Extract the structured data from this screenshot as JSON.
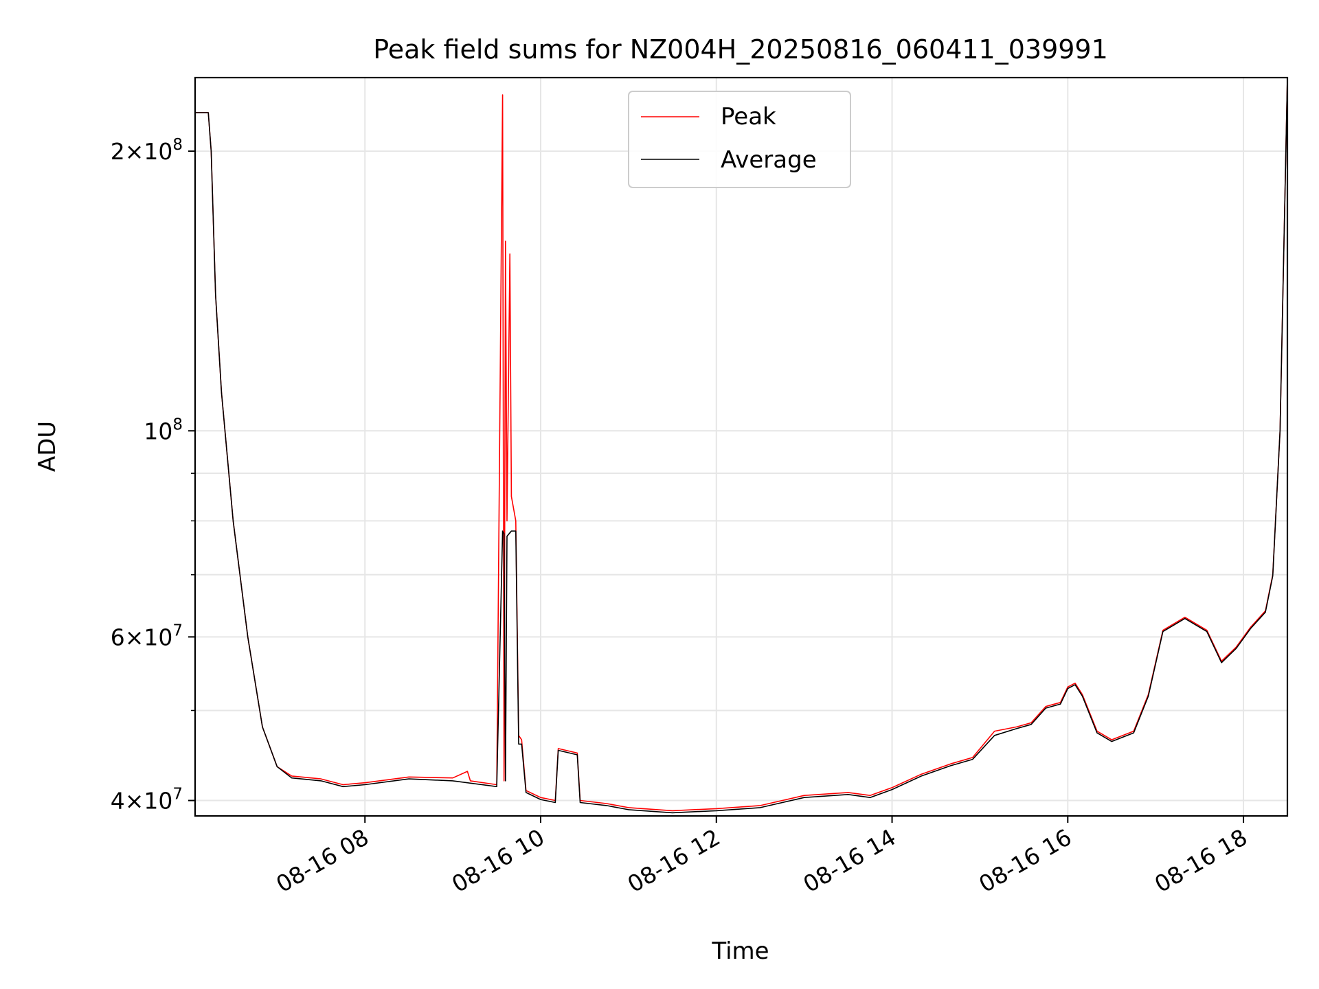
{
  "chart_data": {
    "type": "line",
    "title": "Peak field sums for NZ004H_20250816_060411_039991",
    "xlabel": "Time",
    "ylabel": "ADU",
    "x_scale": "time",
    "y_scale": "log",
    "xlim": [
      "2025-08-16 06:04",
      "2025-08-16 18:30"
    ],
    "ylim": [
      38500000,
      240000000
    ],
    "x_ticks": [
      {
        "t": "2025-08-16 08:00",
        "label": "08-16 08"
      },
      {
        "t": "2025-08-16 10:00",
        "label": "08-16 10"
      },
      {
        "t": "2025-08-16 12:00",
        "label": "08-16 12"
      },
      {
        "t": "2025-08-16 14:00",
        "label": "08-16 14"
      },
      {
        "t": "2025-08-16 16:00",
        "label": "08-16 16"
      },
      {
        "t": "2025-08-16 18:00",
        "label": "08-16 18"
      }
    ],
    "y_major_ticks": [
      {
        "v": 40000000,
        "base": "4",
        "exp": "7"
      },
      {
        "v": 60000000,
        "base": "6",
        "exp": "7"
      },
      {
        "v": 100000000,
        "base": "",
        "exp": "8"
      },
      {
        "v": 200000000,
        "base": "2",
        "exp": "8"
      }
    ],
    "y_minor_ticks": [
      50000000,
      70000000,
      80000000,
      90000000
    ],
    "grid": true,
    "legend_position": "top-center",
    "series": [
      {
        "name": "Peak",
        "color": "#ff0000",
        "points": [
          [
            "2025-08-16 06:04",
            220000000
          ],
          [
            "2025-08-16 06:13",
            220000000
          ],
          [
            "2025-08-16 06:15",
            200000000
          ],
          [
            "2025-08-16 06:18",
            140000000
          ],
          [
            "2025-08-16 06:22",
            110000000
          ],
          [
            "2025-08-16 06:30",
            80000000
          ],
          [
            "2025-08-16 06:40",
            60000000
          ],
          [
            "2025-08-16 06:50",
            48000000
          ],
          [
            "2025-08-16 07:00",
            43500000
          ],
          [
            "2025-08-16 07:10",
            42500000
          ],
          [
            "2025-08-16 07:30",
            42200000
          ],
          [
            "2025-08-16 07:45",
            41600000
          ],
          [
            "2025-08-16 08:00",
            41800000
          ],
          [
            "2025-08-16 08:30",
            42400000
          ],
          [
            "2025-08-16 09:00",
            42300000
          ],
          [
            "2025-08-16 09:10",
            43000000
          ],
          [
            "2025-08-16 09:12",
            42000000
          ],
          [
            "2025-08-16 09:30",
            41600000
          ],
          [
            "2025-08-16 09:34",
            230000000
          ],
          [
            "2025-08-16 09:35",
            42000000
          ],
          [
            "2025-08-16 09:36",
            160000000
          ],
          [
            "2025-08-16 09:37",
            80000000
          ],
          [
            "2025-08-16 09:39",
            155000000
          ],
          [
            "2025-08-16 09:40",
            85000000
          ],
          [
            "2025-08-16 09:43",
            80000000
          ],
          [
            "2025-08-16 09:45",
            47000000
          ],
          [
            "2025-08-16 09:47",
            46500000
          ],
          [
            "2025-08-16 09:50",
            41000000
          ],
          [
            "2025-08-16 10:00",
            40300000
          ],
          [
            "2025-08-16 10:10",
            40000000
          ],
          [
            "2025-08-16 10:12",
            45500000
          ],
          [
            "2025-08-16 10:25",
            45000000
          ],
          [
            "2025-08-16 10:27",
            40000000
          ],
          [
            "2025-08-16 10:45",
            39700000
          ],
          [
            "2025-08-16 11:00",
            39300000
          ],
          [
            "2025-08-16 11:30",
            39000000
          ],
          [
            "2025-08-16 12:00",
            39200000
          ],
          [
            "2025-08-16 12:30",
            39500000
          ],
          [
            "2025-08-16 13:00",
            40500000
          ],
          [
            "2025-08-16 13:30",
            40800000
          ],
          [
            "2025-08-16 13:45",
            40500000
          ],
          [
            "2025-08-16 14:00",
            41300000
          ],
          [
            "2025-08-16 14:20",
            42700000
          ],
          [
            "2025-08-16 14:40",
            43800000
          ],
          [
            "2025-08-16 14:55",
            44500000
          ],
          [
            "2025-08-16 15:10",
            47500000
          ],
          [
            "2025-08-16 15:25",
            48000000
          ],
          [
            "2025-08-16 15:35",
            48500000
          ],
          [
            "2025-08-16 15:45",
            50500000
          ],
          [
            "2025-08-16 15:55",
            51000000
          ],
          [
            "2025-08-16 16:00",
            53000000
          ],
          [
            "2025-08-16 16:05",
            53500000
          ],
          [
            "2025-08-16 16:10",
            52000000
          ],
          [
            "2025-08-16 16:20",
            47500000
          ],
          [
            "2025-08-16 16:30",
            46500000
          ],
          [
            "2025-08-16 16:45",
            47500000
          ],
          [
            "2025-08-16 16:55",
            52000000
          ],
          [
            "2025-08-16 17:05",
            61000000
          ],
          [
            "2025-08-16 17:20",
            63000000
          ],
          [
            "2025-08-16 17:35",
            61000000
          ],
          [
            "2025-08-16 17:45",
            56500000
          ],
          [
            "2025-08-16 17:55",
            58500000
          ],
          [
            "2025-08-16 18:05",
            61500000
          ],
          [
            "2025-08-16 18:15",
            64000000
          ],
          [
            "2025-08-16 18:20",
            70000000
          ],
          [
            "2025-08-16 18:25",
            100000000
          ],
          [
            "2025-08-16 18:30",
            240000000
          ]
        ]
      },
      {
        "name": "Average",
        "color": "#000000",
        "points": [
          [
            "2025-08-16 06:04",
            220000000
          ],
          [
            "2025-08-16 06:13",
            220000000
          ],
          [
            "2025-08-16 06:15",
            200000000
          ],
          [
            "2025-08-16 06:18",
            140000000
          ],
          [
            "2025-08-16 06:22",
            110000000
          ],
          [
            "2025-08-16 06:30",
            80000000
          ],
          [
            "2025-08-16 06:40",
            60000000
          ],
          [
            "2025-08-16 06:50",
            48000000
          ],
          [
            "2025-08-16 07:00",
            43500000
          ],
          [
            "2025-08-16 07:10",
            42300000
          ],
          [
            "2025-08-16 07:30",
            42000000
          ],
          [
            "2025-08-16 07:45",
            41400000
          ],
          [
            "2025-08-16 08:00",
            41600000
          ],
          [
            "2025-08-16 08:30",
            42200000
          ],
          [
            "2025-08-16 09:00",
            42000000
          ],
          [
            "2025-08-16 09:30",
            41400000
          ],
          [
            "2025-08-16 09:34",
            78000000
          ],
          [
            "2025-08-16 09:35",
            77500000
          ],
          [
            "2025-08-16 09:36",
            42000000
          ],
          [
            "2025-08-16 09:37",
            77000000
          ],
          [
            "2025-08-16 09:40",
            78000000
          ],
          [
            "2025-08-16 09:43",
            78000000
          ],
          [
            "2025-08-16 09:45",
            46000000
          ],
          [
            "2025-08-16 09:47",
            46000000
          ],
          [
            "2025-08-16 09:50",
            40800000
          ],
          [
            "2025-08-16 10:00",
            40100000
          ],
          [
            "2025-08-16 10:10",
            39800000
          ],
          [
            "2025-08-16 10:12",
            45300000
          ],
          [
            "2025-08-16 10:25",
            44800000
          ],
          [
            "2025-08-16 10:27",
            39800000
          ],
          [
            "2025-08-16 10:45",
            39500000
          ],
          [
            "2025-08-16 11:00",
            39100000
          ],
          [
            "2025-08-16 11:30",
            38800000
          ],
          [
            "2025-08-16 12:00",
            39000000
          ],
          [
            "2025-08-16 12:30",
            39300000
          ],
          [
            "2025-08-16 13:00",
            40300000
          ],
          [
            "2025-08-16 13:30",
            40600000
          ],
          [
            "2025-08-16 13:45",
            40300000
          ],
          [
            "2025-08-16 14:00",
            41100000
          ],
          [
            "2025-08-16 14:20",
            42500000
          ],
          [
            "2025-08-16 14:40",
            43600000
          ],
          [
            "2025-08-16 14:55",
            44300000
          ],
          [
            "2025-08-16 15:10",
            47000000
          ],
          [
            "2025-08-16 15:25",
            47800000
          ],
          [
            "2025-08-16 15:35",
            48300000
          ],
          [
            "2025-08-16 15:45",
            50300000
          ],
          [
            "2025-08-16 15:55",
            50800000
          ],
          [
            "2025-08-16 16:00",
            52800000
          ],
          [
            "2025-08-16 16:05",
            53300000
          ],
          [
            "2025-08-16 16:10",
            51800000
          ],
          [
            "2025-08-16 16:20",
            47300000
          ],
          [
            "2025-08-16 16:30",
            46300000
          ],
          [
            "2025-08-16 16:45",
            47300000
          ],
          [
            "2025-08-16 16:55",
            51800000
          ],
          [
            "2025-08-16 17:05",
            60800000
          ],
          [
            "2025-08-16 17:20",
            62800000
          ],
          [
            "2025-08-16 17:35",
            60800000
          ],
          [
            "2025-08-16 17:45",
            56300000
          ],
          [
            "2025-08-16 17:55",
            58300000
          ],
          [
            "2025-08-16 18:05",
            61300000
          ],
          [
            "2025-08-16 18:15",
            63800000
          ],
          [
            "2025-08-16 18:20",
            69800000
          ],
          [
            "2025-08-16 18:25",
            100000000
          ],
          [
            "2025-08-16 18:30",
            240000000
          ]
        ]
      }
    ]
  }
}
